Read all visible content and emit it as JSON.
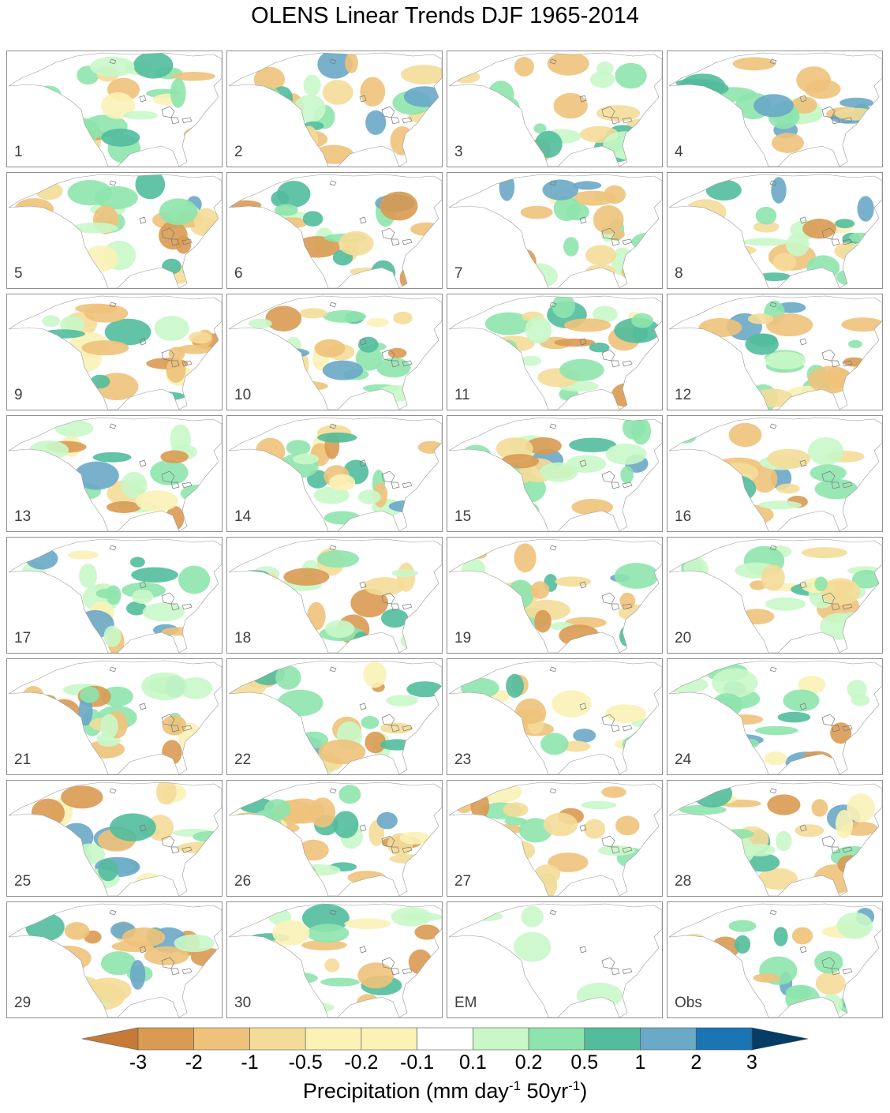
{
  "title": "OLENS Linear Trends DJF 1965-2014",
  "panels": [
    "1",
    "2",
    "3",
    "4",
    "5",
    "6",
    "7",
    "8",
    "9",
    "10",
    "11",
    "12",
    "13",
    "14",
    "15",
    "16",
    "17",
    "18",
    "19",
    "20",
    "21",
    "22",
    "23",
    "24",
    "25",
    "26",
    "27",
    "28",
    "29",
    "30",
    "EM",
    "Obs"
  ],
  "colorbar": {
    "ticks": [
      "-3",
      "-2",
      "-1",
      "-0.5",
      "-0.2",
      "-0.1",
      "0.1",
      "0.2",
      "0.5",
      "1",
      "2",
      "3"
    ],
    "colors": [
      "#c57b37",
      "#d99a52",
      "#eec27a",
      "#f4dc98",
      "#fbf2b6",
      "#ffffff",
      "#c9f7c8",
      "#8ee4ad",
      "#52bc9c",
      "#6aa9c8",
      "#1a74b3",
      "#063c66"
    ],
    "label_main": "Precipitation (mm day",
    "label_sup1": "-1",
    "label_mid": " 50yr",
    "label_sup2": "-1",
    "label_end": ")"
  }
}
